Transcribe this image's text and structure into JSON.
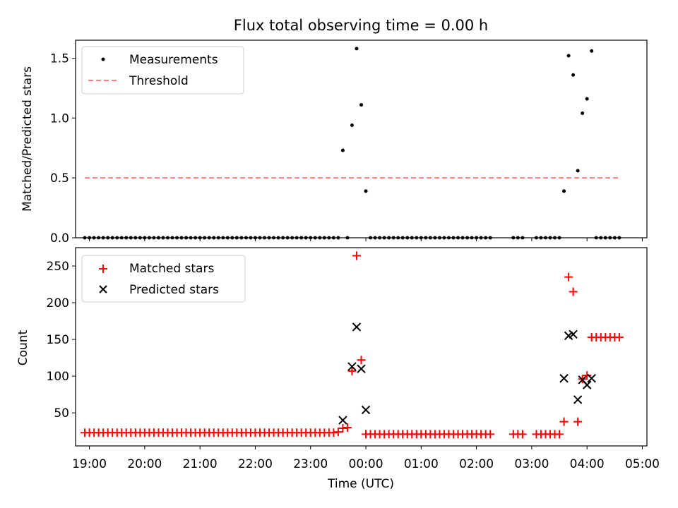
{
  "chart_data": [
    {
      "type": "scatter",
      "title": "Flux total observing time = 0.00 h",
      "xlabel": "",
      "ylabel": "Matched/Predicted stars",
      "xlim": [
        "18:45",
        "05:05"
      ],
      "ylim": [
        0,
        1.65
      ],
      "yticks": [
        0.0,
        0.5,
        1.0,
        1.5
      ],
      "ytick_labels": [
        "0.0",
        "0.5",
        "1.0",
        "1.5"
      ],
      "legend_position": "upper-left",
      "series": [
        {
          "name": "Measurements",
          "style": "dot",
          "color": "#000000",
          "points": [
            [
              "18:55",
              0
            ],
            [
              "19:00",
              0
            ],
            [
              "19:05",
              0
            ],
            [
              "19:10",
              0
            ],
            [
              "19:15",
              0
            ],
            [
              "19:20",
              0
            ],
            [
              "19:25",
              0
            ],
            [
              "19:30",
              0
            ],
            [
              "19:35",
              0
            ],
            [
              "19:40",
              0
            ],
            [
              "19:45",
              0
            ],
            [
              "19:50",
              0
            ],
            [
              "19:55",
              0
            ],
            [
              "20:00",
              0
            ],
            [
              "20:05",
              0
            ],
            [
              "20:10",
              0
            ],
            [
              "20:15",
              0
            ],
            [
              "20:20",
              0
            ],
            [
              "20:25",
              0
            ],
            [
              "20:30",
              0
            ],
            [
              "20:35",
              0
            ],
            [
              "20:40",
              0
            ],
            [
              "20:45",
              0
            ],
            [
              "20:50",
              0
            ],
            [
              "20:55",
              0
            ],
            [
              "21:00",
              0
            ],
            [
              "21:05",
              0
            ],
            [
              "21:10",
              0
            ],
            [
              "21:15",
              0
            ],
            [
              "21:20",
              0
            ],
            [
              "21:25",
              0
            ],
            [
              "21:30",
              0
            ],
            [
              "21:35",
              0
            ],
            [
              "21:40",
              0
            ],
            [
              "21:45",
              0
            ],
            [
              "21:50",
              0
            ],
            [
              "21:55",
              0
            ],
            [
              "22:00",
              0
            ],
            [
              "22:05",
              0
            ],
            [
              "22:10",
              0
            ],
            [
              "22:15",
              0
            ],
            [
              "22:20",
              0
            ],
            [
              "22:25",
              0
            ],
            [
              "22:30",
              0
            ],
            [
              "22:35",
              0
            ],
            [
              "22:40",
              0
            ],
            [
              "22:45",
              0
            ],
            [
              "22:50",
              0
            ],
            [
              "22:55",
              0
            ],
            [
              "23:00",
              0
            ],
            [
              "23:05",
              0
            ],
            [
              "23:10",
              0
            ],
            [
              "23:15",
              0
            ],
            [
              "23:20",
              0
            ],
            [
              "23:25",
              0
            ],
            [
              "23:30",
              0
            ],
            [
              "23:35",
              0.73
            ],
            [
              "23:40",
              0
            ],
            [
              "23:45",
              0.94
            ],
            [
              "23:50",
              1.58
            ],
            [
              "23:55",
              1.11
            ],
            [
              "00:00",
              0.39
            ],
            [
              "00:05",
              0
            ],
            [
              "00:10",
              0
            ],
            [
              "00:15",
              0
            ],
            [
              "00:20",
              0
            ],
            [
              "00:25",
              0
            ],
            [
              "00:30",
              0
            ],
            [
              "00:35",
              0
            ],
            [
              "00:40",
              0
            ],
            [
              "00:45",
              0
            ],
            [
              "00:50",
              0
            ],
            [
              "00:55",
              0
            ],
            [
              "01:00",
              0
            ],
            [
              "01:05",
              0
            ],
            [
              "01:10",
              0
            ],
            [
              "01:15",
              0
            ],
            [
              "01:20",
              0
            ],
            [
              "01:25",
              0
            ],
            [
              "01:30",
              0
            ],
            [
              "01:35",
              0
            ],
            [
              "01:40",
              0
            ],
            [
              "01:45",
              0
            ],
            [
              "01:50",
              0
            ],
            [
              "01:55",
              0
            ],
            [
              "02:00",
              0
            ],
            [
              "02:05",
              0
            ],
            [
              "02:10",
              0
            ],
            [
              "02:15",
              0
            ],
            [
              "02:40",
              0
            ],
            [
              "02:45",
              0
            ],
            [
              "02:50",
              0
            ],
            [
              "03:05",
              0
            ],
            [
              "03:10",
              0
            ],
            [
              "03:15",
              0
            ],
            [
              "03:20",
              0
            ],
            [
              "03:25",
              0
            ],
            [
              "03:30",
              0
            ],
            [
              "03:35",
              0.39
            ],
            [
              "03:40",
              1.52
            ],
            [
              "03:45",
              1.36
            ],
            [
              "03:50",
              0.56
            ],
            [
              "03:55",
              1.04
            ],
            [
              "04:00",
              1.16
            ],
            [
              "04:05",
              1.56
            ],
            [
              "04:10",
              0
            ],
            [
              "04:15",
              0
            ],
            [
              "04:20",
              0
            ],
            [
              "04:25",
              0
            ],
            [
              "04:30",
              0
            ],
            [
              "04:35",
              0
            ]
          ]
        },
        {
          "name": "Threshold",
          "style": "dashed-line",
          "color": "#ff7f7f",
          "points": [
            [
              "18:55",
              0.5
            ],
            [
              "04:35",
              0.5
            ]
          ]
        }
      ]
    },
    {
      "type": "scatter",
      "title": "",
      "xlabel": "Time (UTC)",
      "ylabel": "Count",
      "xlim": [
        "18:45",
        "05:05"
      ],
      "ylim": [
        5,
        275
      ],
      "yticks": [
        50,
        100,
        150,
        200,
        250
      ],
      "ytick_labels": [
        "50",
        "100",
        "150",
        "200",
        "250"
      ],
      "xticks": [
        "19:00",
        "20:00",
        "21:00",
        "22:00",
        "23:00",
        "00:00",
        "01:00",
        "02:00",
        "03:00",
        "04:00",
        "05:00"
      ],
      "legend_position": "upper-left",
      "series": [
        {
          "name": "Matched stars",
          "style": "plus",
          "color": "#ff0000",
          "points": [
            [
              "18:55",
              23
            ],
            [
              "19:00",
              23
            ],
            [
              "19:05",
              23
            ],
            [
              "19:10",
              23
            ],
            [
              "19:15",
              23
            ],
            [
              "19:20",
              23
            ],
            [
              "19:25",
              23
            ],
            [
              "19:30",
              23
            ],
            [
              "19:35",
              23
            ],
            [
              "19:40",
              23
            ],
            [
              "19:45",
              23
            ],
            [
              "19:50",
              23
            ],
            [
              "19:55",
              23
            ],
            [
              "20:00",
              23
            ],
            [
              "20:05",
              23
            ],
            [
              "20:10",
              23
            ],
            [
              "20:15",
              23
            ],
            [
              "20:20",
              23
            ],
            [
              "20:25",
              23
            ],
            [
              "20:30",
              23
            ],
            [
              "20:35",
              23
            ],
            [
              "20:40",
              23
            ],
            [
              "20:45",
              23
            ],
            [
              "20:50",
              23
            ],
            [
              "20:55",
              23
            ],
            [
              "21:00",
              23
            ],
            [
              "21:05",
              23
            ],
            [
              "21:10",
              23
            ],
            [
              "21:15",
              23
            ],
            [
              "21:20",
              23
            ],
            [
              "21:25",
              23
            ],
            [
              "21:30",
              23
            ],
            [
              "21:35",
              23
            ],
            [
              "21:40",
              23
            ],
            [
              "21:45",
              23
            ],
            [
              "21:50",
              23
            ],
            [
              "21:55",
              23
            ],
            [
              "22:00",
              23
            ],
            [
              "22:05",
              23
            ],
            [
              "22:10",
              23
            ],
            [
              "22:15",
              23
            ],
            [
              "22:20",
              23
            ],
            [
              "22:25",
              23
            ],
            [
              "22:30",
              23
            ],
            [
              "22:35",
              23
            ],
            [
              "22:40",
              23
            ],
            [
              "22:45",
              23
            ],
            [
              "22:50",
              23
            ],
            [
              "22:55",
              23
            ],
            [
              "23:00",
              23
            ],
            [
              "23:05",
              23
            ],
            [
              "23:10",
              23
            ],
            [
              "23:15",
              23
            ],
            [
              "23:20",
              23
            ],
            [
              "23:25",
              23
            ],
            [
              "23:30",
              24
            ],
            [
              "23:35",
              29
            ],
            [
              "23:40",
              30
            ],
            [
              "23:45",
              107
            ],
            [
              "23:50",
              264
            ],
            [
              "23:55",
              122
            ],
            [
              "00:00",
              21
            ],
            [
              "00:05",
              21
            ],
            [
              "00:10",
              21
            ],
            [
              "00:15",
              21
            ],
            [
              "00:20",
              21
            ],
            [
              "00:25",
              21
            ],
            [
              "00:30",
              21
            ],
            [
              "00:35",
              21
            ],
            [
              "00:40",
              21
            ],
            [
              "00:45",
              21
            ],
            [
              "00:50",
              21
            ],
            [
              "00:55",
              21
            ],
            [
              "01:00",
              21
            ],
            [
              "01:05",
              21
            ],
            [
              "01:10",
              21
            ],
            [
              "01:15",
              21
            ],
            [
              "01:20",
              21
            ],
            [
              "01:25",
              21
            ],
            [
              "01:30",
              21
            ],
            [
              "01:35",
              21
            ],
            [
              "01:40",
              21
            ],
            [
              "01:45",
              21
            ],
            [
              "01:50",
              21
            ],
            [
              "01:55",
              21
            ],
            [
              "02:00",
              21
            ],
            [
              "02:05",
              21
            ],
            [
              "02:10",
              21
            ],
            [
              "02:15",
              21
            ],
            [
              "02:40",
              21
            ],
            [
              "02:45",
              21
            ],
            [
              "02:50",
              21
            ],
            [
              "03:05",
              21
            ],
            [
              "03:10",
              21
            ],
            [
              "03:15",
              21
            ],
            [
              "03:20",
              21
            ],
            [
              "03:25",
              21
            ],
            [
              "03:30",
              21
            ],
            [
              "03:35",
              38
            ],
            [
              "03:40",
              235
            ],
            [
              "03:45",
              215
            ],
            [
              "03:50",
              38
            ],
            [
              "03:55",
              96
            ],
            [
              "04:00",
              101
            ],
            [
              "04:05",
              153
            ],
            [
              "04:10",
              153
            ],
            [
              "04:15",
              153
            ],
            [
              "04:20",
              153
            ],
            [
              "04:25",
              153
            ],
            [
              "04:30",
              153
            ],
            [
              "04:35",
              153
            ]
          ]
        },
        {
          "name": "Predicted stars",
          "style": "x",
          "color": "#000000",
          "points": [
            [
              "23:35",
              40
            ],
            [
              "23:45",
              113
            ],
            [
              "23:50",
              167
            ],
            [
              "23:55",
              110
            ],
            [
              "00:00",
              54
            ],
            [
              "03:35",
              97
            ],
            [
              "03:40",
              155
            ],
            [
              "03:45",
              157
            ],
            [
              "03:50",
              68
            ],
            [
              "03:55",
              95
            ],
            [
              "04:00",
              88
            ],
            [
              "04:05",
              97
            ]
          ]
        }
      ]
    }
  ]
}
